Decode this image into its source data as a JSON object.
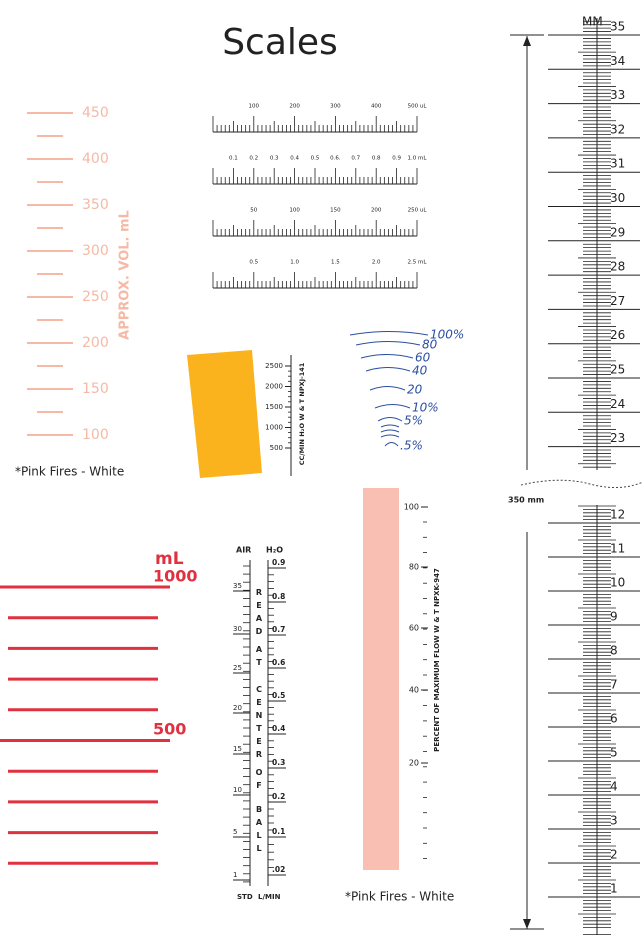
{
  "title": "Scales",
  "pink_scale": {
    "labels": [
      "450",
      "400",
      "350",
      "300",
      "250",
      "200",
      "150",
      "100"
    ],
    "axis_label": "APPROX. VOL. mL",
    "note": "*Pink Fires - White"
  },
  "syringe_scales": [
    {
      "labels": [
        "100",
        "200",
        "300",
        "400",
        "500 uL"
      ]
    },
    {
      "labels": [
        "0.1",
        "0.2",
        "0.3",
        "0.4",
        "0.5",
        "0.6.",
        "0.7",
        "0.8",
        "0.9",
        "1.0 mL"
      ]
    },
    {
      "labels": [
        "50",
        "100",
        "150",
        "200",
        "250 uL"
      ]
    },
    {
      "labels": [
        "0.5",
        "1.0",
        "1.5",
        "2.0",
        "2.5 mL"
      ]
    }
  ],
  "flow_scale": {
    "labels": [
      "2500",
      "2000",
      "1500",
      "1000",
      "500"
    ],
    "axis_label": "CC/MIN H₂O W & T NPXJ-141"
  },
  "curve_scale": {
    "labels": [
      "100%",
      "80",
      "60",
      "40",
      "20",
      "10%",
      "5%",
      ".5%"
    ]
  },
  "red_scale": {
    "unit": "mL",
    "labels": [
      "1000",
      "500"
    ]
  },
  "ball_scale": {
    "left_header": "AIR",
    "right_header": "H₂O",
    "left_labels": [
      "35",
      "30",
      "25",
      "20",
      "15",
      "10",
      "5",
      "1"
    ],
    "right_labels": [
      "0.9",
      "0.8",
      "0.7",
      "0.6",
      "0.5",
      "0.4",
      "0.3",
      "0.2",
      "0.1",
      ".02"
    ],
    "center_words": [
      "READ",
      "AT",
      "CENTER",
      "OF",
      "BALL"
    ],
    "footer_left": "STD",
    "footer_right": "L/MIN"
  },
  "percent_scale": {
    "labels": [
      "100",
      "80",
      "60",
      "40",
      "20"
    ],
    "axis_label": "PERCENT OF MAXIMUM FLOW W & T NPXK-947",
    "note": "*Pink Fires - White"
  },
  "mm_scale": {
    "unit": "MM",
    "upper_labels": [
      "35",
      "34",
      "33",
      "32",
      "31",
      "30",
      "29",
      "28",
      "27",
      "26",
      "25",
      "24",
      "23"
    ],
    "lower_labels": [
      "12",
      "11",
      "10",
      "9",
      "8",
      "7",
      "6",
      "5",
      "4",
      "3",
      "2",
      "1"
    ],
    "length_label": "350 mm"
  }
}
